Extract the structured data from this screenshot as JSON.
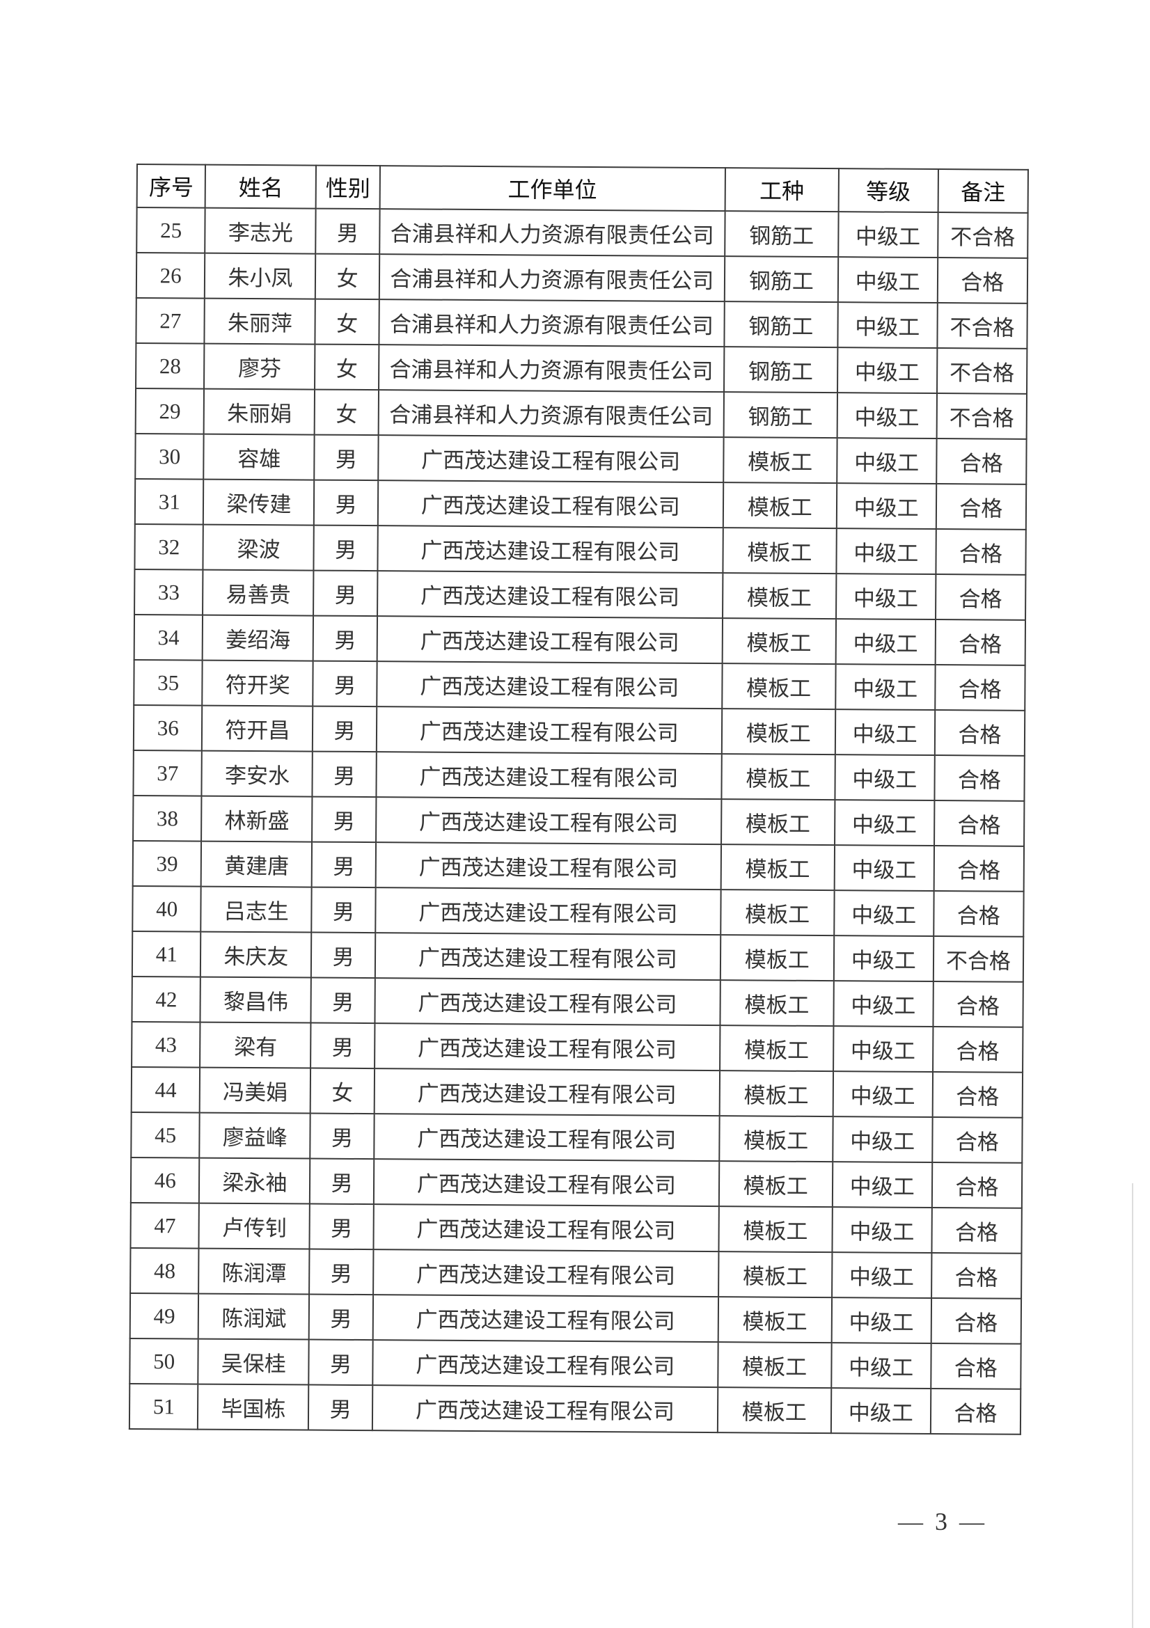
{
  "table": {
    "headers": [
      "序号",
      "姓名",
      "性别",
      "工作单位",
      "工种",
      "等级",
      "备注"
    ],
    "rows": [
      [
        "25",
        "李志光",
        "男",
        "合浦县祥和人力资源有限责任公司",
        "钢筋工",
        "中级工",
        "不合格"
      ],
      [
        "26",
        "朱小凤",
        "女",
        "合浦县祥和人力资源有限责任公司",
        "钢筋工",
        "中级工",
        "合格"
      ],
      [
        "27",
        "朱丽萍",
        "女",
        "合浦县祥和人力资源有限责任公司",
        "钢筋工",
        "中级工",
        "不合格"
      ],
      [
        "28",
        "廖芬",
        "女",
        "合浦县祥和人力资源有限责任公司",
        "钢筋工",
        "中级工",
        "不合格"
      ],
      [
        "29",
        "朱丽娟",
        "女",
        "合浦县祥和人力资源有限责任公司",
        "钢筋工",
        "中级工",
        "不合格"
      ],
      [
        "30",
        "容雄",
        "男",
        "广西茂达建设工程有限公司",
        "模板工",
        "中级工",
        "合格"
      ],
      [
        "31",
        "梁传建",
        "男",
        "广西茂达建设工程有限公司",
        "模板工",
        "中级工",
        "合格"
      ],
      [
        "32",
        "梁波",
        "男",
        "广西茂达建设工程有限公司",
        "模板工",
        "中级工",
        "合格"
      ],
      [
        "33",
        "易善贵",
        "男",
        "广西茂达建设工程有限公司",
        "模板工",
        "中级工",
        "合格"
      ],
      [
        "34",
        "姜绍海",
        "男",
        "广西茂达建设工程有限公司",
        "模板工",
        "中级工",
        "合格"
      ],
      [
        "35",
        "符开奖",
        "男",
        "广西茂达建设工程有限公司",
        "模板工",
        "中级工",
        "合格"
      ],
      [
        "36",
        "符开昌",
        "男",
        "广西茂达建设工程有限公司",
        "模板工",
        "中级工",
        "合格"
      ],
      [
        "37",
        "李安水",
        "男",
        "广西茂达建设工程有限公司",
        "模板工",
        "中级工",
        "合格"
      ],
      [
        "38",
        "林新盛",
        "男",
        "广西茂达建设工程有限公司",
        "模板工",
        "中级工",
        "合格"
      ],
      [
        "39",
        "黄建唐",
        "男",
        "广西茂达建设工程有限公司",
        "模板工",
        "中级工",
        "合格"
      ],
      [
        "40",
        "吕志生",
        "男",
        "广西茂达建设工程有限公司",
        "模板工",
        "中级工",
        "合格"
      ],
      [
        "41",
        "朱庆友",
        "男",
        "广西茂达建设工程有限公司",
        "模板工",
        "中级工",
        "不合格"
      ],
      [
        "42",
        "黎昌伟",
        "男",
        "广西茂达建设工程有限公司",
        "模板工",
        "中级工",
        "合格"
      ],
      [
        "43",
        "梁有",
        "男",
        "广西茂达建设工程有限公司",
        "模板工",
        "中级工",
        "合格"
      ],
      [
        "44",
        "冯美娟",
        "女",
        "广西茂达建设工程有限公司",
        "模板工",
        "中级工",
        "合格"
      ],
      [
        "45",
        "廖益峰",
        "男",
        "广西茂达建设工程有限公司",
        "模板工",
        "中级工",
        "合格"
      ],
      [
        "46",
        "梁永袖",
        "男",
        "广西茂达建设工程有限公司",
        "模板工",
        "中级工",
        "合格"
      ],
      [
        "47",
        "卢传钊",
        "男",
        "广西茂达建设工程有限公司",
        "模板工",
        "中级工",
        "合格"
      ],
      [
        "48",
        "陈润潭",
        "男",
        "广西茂达建设工程有限公司",
        "模板工",
        "中级工",
        "合格"
      ],
      [
        "49",
        "陈润斌",
        "男",
        "广西茂达建设工程有限公司",
        "模板工",
        "中级工",
        "合格"
      ],
      [
        "50",
        "吴保桂",
        "男",
        "广西茂达建设工程有限公司",
        "模板工",
        "中级工",
        "合格"
      ],
      [
        "51",
        "毕国栋",
        "男",
        "广西茂达建设工程有限公司",
        "模板工",
        "中级工",
        "合格"
      ]
    ]
  },
  "footer": {
    "page_number": "— 3 —"
  }
}
